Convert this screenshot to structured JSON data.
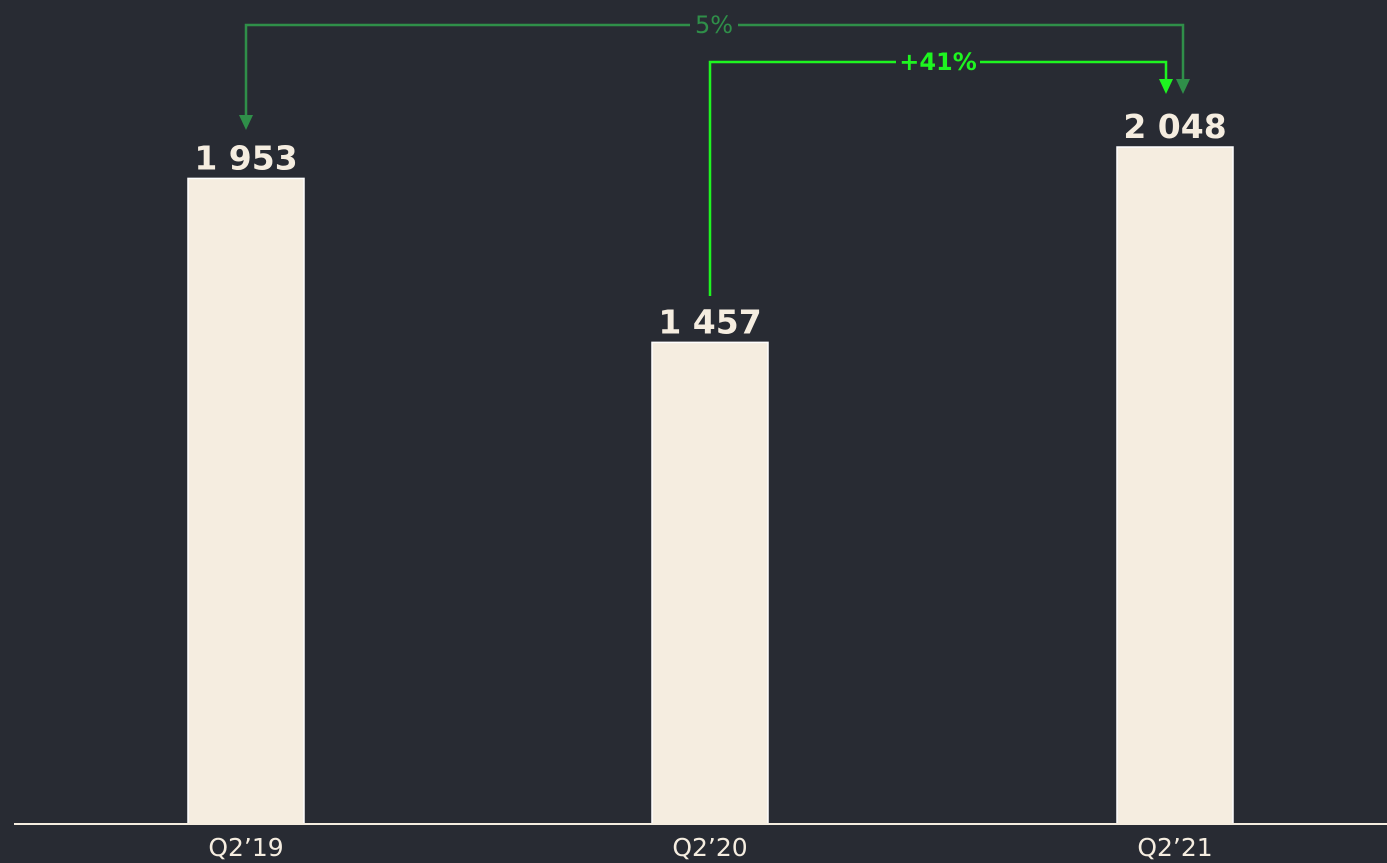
{
  "chart_data": {
    "type": "bar",
    "categories": [
      "Q2’19",
      "Q2’20",
      "Q2’21"
    ],
    "values": [
      1953,
      1457,
      2048
    ],
    "value_labels": [
      "1 953",
      "1 457",
      "2 048"
    ],
    "ylim": [
      0,
      2048
    ],
    "grid": false,
    "colors": {
      "background": "#282b33",
      "bar": "#f5ede0",
      "text": "#f5ede0"
    },
    "annotations": [
      {
        "from": "Q2’19",
        "to": "Q2’21",
        "label": "5%",
        "color": "#2f8f49",
        "bold": false
      },
      {
        "from": "Q2’20",
        "to": "Q2’21",
        "label": "+41%",
        "color": "#1ef520",
        "bold": true
      }
    ]
  }
}
